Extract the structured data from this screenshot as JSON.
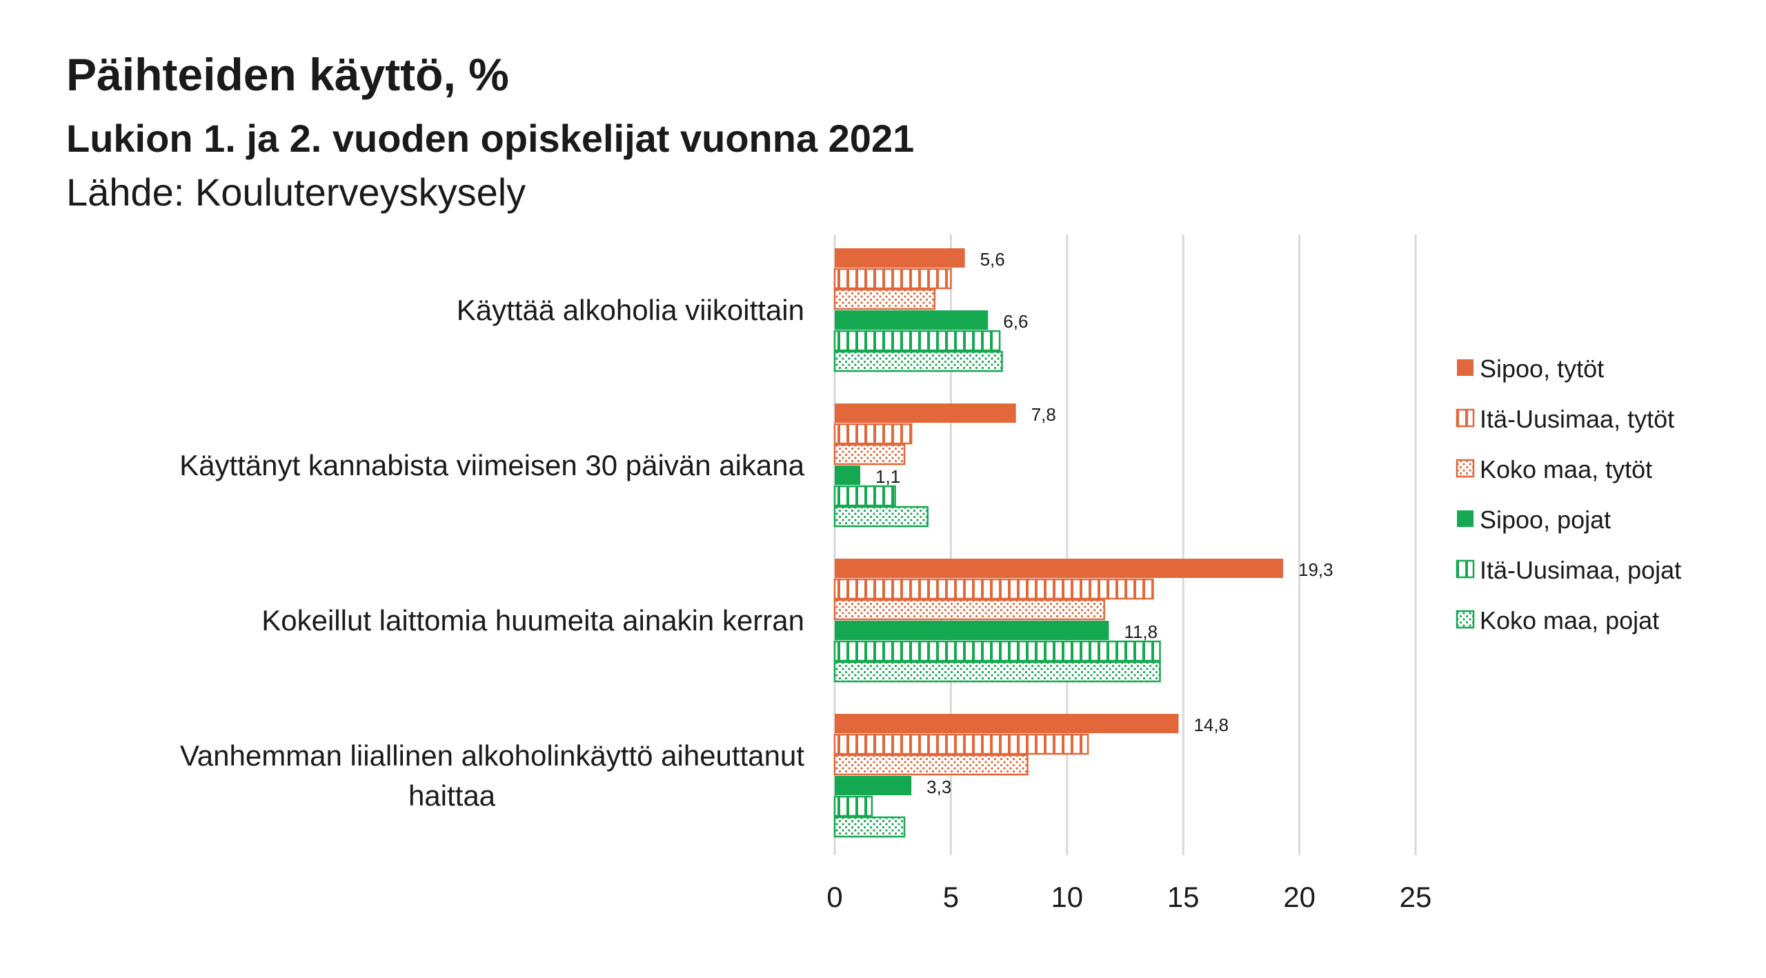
{
  "header": {
    "title": "Päihteiden käyttö, %",
    "subtitle": "Lukion 1. ja 2. vuoden opiskelijat vuonna 2021",
    "source": "Lähde: Kouluterveyskysely"
  },
  "colors": {
    "orange": "#e2673a",
    "green": "#14a850",
    "grid": "#d9d9d9"
  },
  "chart_data": {
    "type": "bar",
    "orientation": "horizontal",
    "title": "Päihteiden käyttö, %",
    "categories": [
      [
        "Käyttää alkoholia viikoittain"
      ],
      [
        "Käyttänyt kannabista viimeisen 30 päivän aikana"
      ],
      [
        "Kokeillut laittomia huumeita ainakin kerran"
      ],
      [
        "Vanhemman liiallinen alkoholinkäyttö aiheuttanut",
        "haittaa"
      ]
    ],
    "xlim": [
      0,
      25
    ],
    "xticks": [
      "0",
      "5",
      "10",
      "15",
      "20",
      "25"
    ],
    "grid": true,
    "legend_position": "right",
    "series": [
      {
        "name": "Sipoo, tytöt",
        "color": "orange",
        "pattern": "solid",
        "values": [
          5.6,
          7.8,
          19.3,
          14.8
        ],
        "labels": [
          "5,6",
          "7,8",
          "19,3",
          "14,8"
        ]
      },
      {
        "name": "Itä-Uusimaa, tytöt",
        "color": "orange",
        "pattern": "vertical",
        "values": [
          5.0,
          3.3,
          13.7,
          10.9
        ],
        "labels": [
          null,
          null,
          null,
          null
        ]
      },
      {
        "name": "Koko maa, tytöt",
        "color": "orange",
        "pattern": "dots",
        "values": [
          4.3,
          3.0,
          11.6,
          8.3
        ],
        "labels": [
          null,
          null,
          null,
          null
        ]
      },
      {
        "name": "Sipoo, pojat",
        "color": "green",
        "pattern": "solid",
        "values": [
          6.6,
          1.1,
          11.8,
          3.3
        ],
        "labels": [
          "6,6",
          "1,1",
          "11,8",
          "3,3"
        ]
      },
      {
        "name": "Itä-Uusimaa, pojat",
        "color": "green",
        "pattern": "vertical",
        "values": [
          7.1,
          2.6,
          14.0,
          1.6
        ],
        "labels": [
          null,
          null,
          null,
          null
        ]
      },
      {
        "name": "Koko maa, pojat",
        "color": "green",
        "pattern": "dots",
        "values": [
          7.2,
          4.0,
          14.0,
          3.0
        ],
        "labels": [
          null,
          null,
          null,
          null
        ]
      }
    ]
  }
}
